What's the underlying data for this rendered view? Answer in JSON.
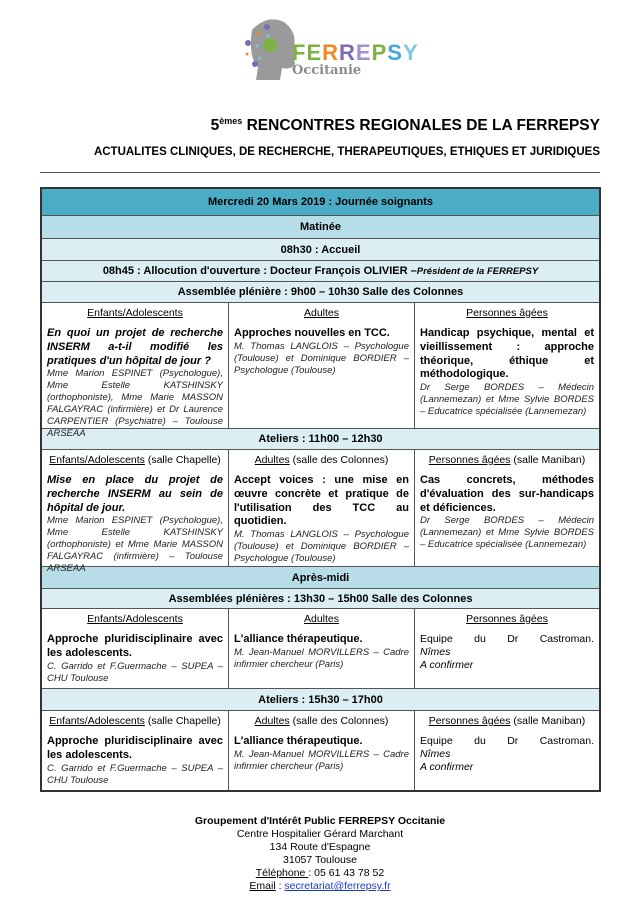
{
  "logo": {
    "brand": "FERREPSY",
    "subtitle": "Occitanie",
    "brand_colors": [
      "#7cb342",
      "#7cb342",
      "#f08a24",
      "#7e6bb5",
      "#a48fd1",
      "#7cb342",
      "#42a5d5",
      "#7fc6ea"
    ]
  },
  "title": {
    "ordinal": "5",
    "sup": "èmes",
    "text": " RENCONTRES REGIONALES DE LA FERREPSY"
  },
  "subtitle": "ACTUALITES CLINIQUES, DE RECHERCHE, THERAPEUTIQUES, ETHIQUES ET JURIDIQUES",
  "program": {
    "day": "Mercredi 20 Mars 2019 : Journée soignants",
    "morning": "Matinée",
    "welcome": "08h30 : Accueil",
    "opening": "08h45 : Allocution d'ouverture : Docteur François OLIVIER – ",
    "opening_role": "Président de la FERREPSY",
    "plenary1": "Assemblée plénière : 9h00 – 10h30 Salle des Colonnes",
    "plenary1_cols": [
      {
        "head": "Enfants/Adolescents",
        "room": "",
        "topic": "En quoi un projet de recherche INSERM a-t-il modifié les pratiques d'un hôpital de jour ?",
        "who": "Mme Marion ESPINET (Psychologue), Mme Estelle KATSHINSKY (orthophoniste), Mme Marie MASSON FALGAYRAC (infirmière) et Dr Laurence CARPENTIER (Psychiatre) – Toulouse ARSEAA"
      },
      {
        "head": "Adultes",
        "room": "",
        "topic": "Approches nouvelles en TCC.",
        "who": "M. Thomas LANGLOIS – Psychologue (Toulouse) et Dominique BORDIER – Psychologue (Toulouse)"
      },
      {
        "head": "Personnes âgées",
        "room": "",
        "topic": "Handicap psychique, mental et vieillissement : approche théorique, éthique et méthodologique.",
        "who": "Dr Serge BORDES – Médecin (Lannemezan) et Mme Sylvie BORDES – Educatrice spécialisée (Lannemezan)"
      }
    ],
    "workshops1": "Ateliers : 11h00 – 12h30",
    "workshops1_cols": [
      {
        "head": "Enfants/Adolescents",
        "room": " (salle Chapelle)",
        "topic": "Mise en place du projet de recherche INSERM au sein de hôpital de jour.",
        "who": "Mme Marion ESPINET (Psychologue), Mme Estelle KATSHINSKY (orthophoniste) et Mme Marie MASSON FALGAYRAC (infirmière) – Toulouse ARSEAA"
      },
      {
        "head": "Adultes",
        "room": " (salle des Colonnes)",
        "topic": "Accept voices : une mise en œuvre concrète et pratique de l'utilisation des TCC au quotidien.",
        "who": "M. Thomas LANGLOIS – Psychologue (Toulouse) et Dominique BORDIER – Psychologue (Toulouse)"
      },
      {
        "head": "Personnes âgées",
        "room": " (salle Maniban)",
        "topic": "Cas concrets, méthodes d'évaluation des sur-handicaps et déficiences.",
        "who": "Dr Serge BORDES – Médecin (Lannemezan) et Mme Sylvie BORDES – Educatrice spécialisée (Lannemezan)"
      }
    ],
    "afternoon": "Après-midi",
    "plenary2": "Assemblées plénières : 13h30 – 15h00 Salle des Colonnes",
    "plenary2_cols": [
      {
        "head": "Enfants/Adolescents",
        "room": "",
        "topic": "Approche pluridisciplinaire avec les adolescents.",
        "who": "C. Garrido et F.Guermache – SUPEA – CHU Toulouse"
      },
      {
        "head": "Adultes",
        "room": "",
        "topic": "L'alliance thérapeutique.",
        "who": "M. Jean-Manuel MORVILLERS – Cadre infirmier chercheur (Paris)"
      },
      {
        "head": "Personnes âgées",
        "room": "",
        "plain": "Equipe du Dr Castroman.",
        "city": "Nîmes",
        "note": "A confirmer"
      }
    ],
    "workshops2": "Ateliers : 15h30 – 17h00",
    "workshops2_cols": [
      {
        "head": "Enfants/Adolescents",
        "room": " (salle Chapelle)",
        "topic": "Approche pluridisciplinaire avec les adolescents.",
        "who": "C. Garrido et F.Guermache – SUPEA – CHU Toulouse"
      },
      {
        "head": "Adultes",
        "room": " (salle des Colonnes)",
        "topic": "L'alliance thérapeutique.",
        "who": "M. Jean-Manuel MORVILLERS – Cadre infirmier chercheur (Paris)"
      },
      {
        "head": "Personnes âgées",
        "room": " (salle Maniban)",
        "plain": "Equipe du Dr Castroman.",
        "city": "Nîmes",
        "note": "A confirmer"
      }
    ]
  },
  "footer": {
    "org": "Groupement d'Intérêt Public FERREPSY Occitanie",
    "hospital": "Centre Hospitalier Gérard Marchant",
    "street": "134 Route d'Espagne",
    "city": "31057 Toulouse",
    "phone_label": "Téléphone ",
    "phone": ": 05 61 43 78 52",
    "email_label": "Email",
    "email_sep": " : ",
    "email": "secretariat@ferrepsy.fr"
  },
  "colors": {
    "band_dark": "#4bacc6",
    "band_mid": "#b7dde8",
    "band_light": "#daeef3"
  }
}
